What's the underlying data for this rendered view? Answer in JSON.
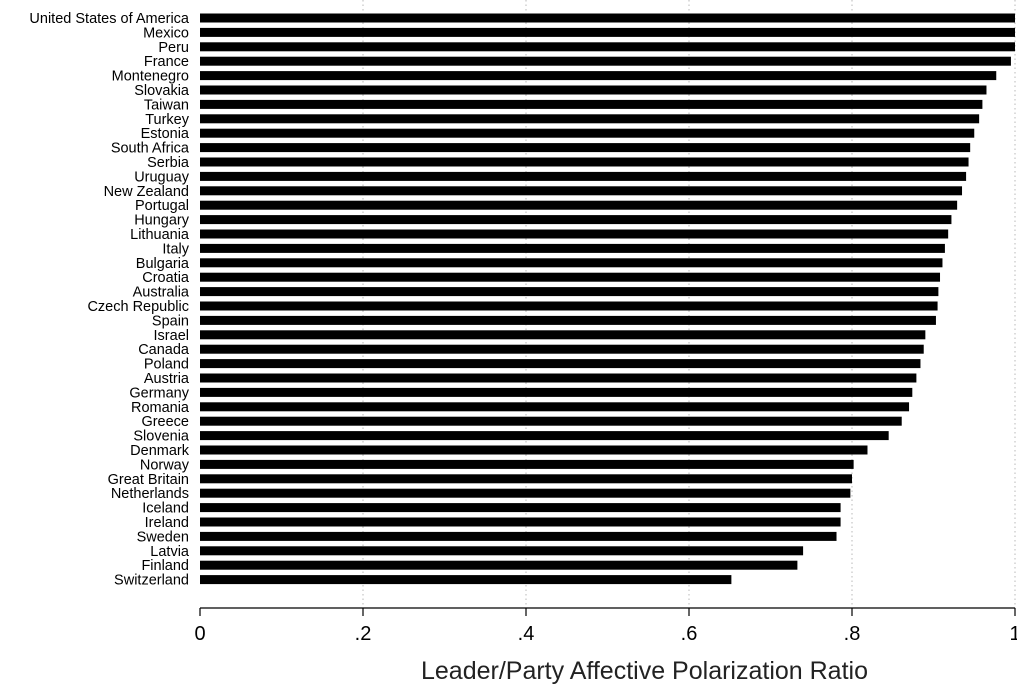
{
  "chart_data": {
    "type": "bar",
    "orientation": "horizontal",
    "xlabel": "Leader/Party Affective Polarization Ratio",
    "xlim": [
      0,
      1
    ],
    "xticks": [
      0,
      0.2,
      0.4,
      0.6,
      0.8,
      1
    ],
    "xtick_labels": [
      "0",
      ".2",
      ".4",
      ".6",
      ".8",
      "1"
    ],
    "grid": "vertical dotted",
    "bar_color": "#000000",
    "categories": [
      "United States of America",
      "Mexico",
      "Peru",
      "France",
      "Montenegro",
      "Slovakia",
      "Taiwan",
      "Turkey",
      "Estonia",
      "South Africa",
      "Serbia",
      "Uruguay",
      "New Zealand",
      "Portugal",
      "Hungary",
      "Lithuania",
      "Italy",
      "Bulgaria",
      "Croatia",
      "Australia",
      "Czech Republic",
      "Spain",
      "Israel",
      "Canada",
      "Poland",
      "Austria",
      "Germany",
      "Romania",
      "Greece",
      "Slovenia",
      "Denmark",
      "Norway",
      "Great Britain",
      "Netherlands",
      "Iceland",
      "Ireland",
      "Sweden",
      "Latvia",
      "Finland",
      "Switzerland"
    ],
    "values": [
      1.0,
      1.0,
      1.0,
      0.995,
      0.977,
      0.965,
      0.96,
      0.956,
      0.95,
      0.945,
      0.943,
      0.94,
      0.935,
      0.929,
      0.922,
      0.918,
      0.914,
      0.911,
      0.908,
      0.906,
      0.905,
      0.903,
      0.89,
      0.888,
      0.884,
      0.879,
      0.874,
      0.87,
      0.861,
      0.845,
      0.819,
      0.802,
      0.8,
      0.798,
      0.786,
      0.786,
      0.781,
      0.74,
      0.733,
      0.652
    ]
  }
}
